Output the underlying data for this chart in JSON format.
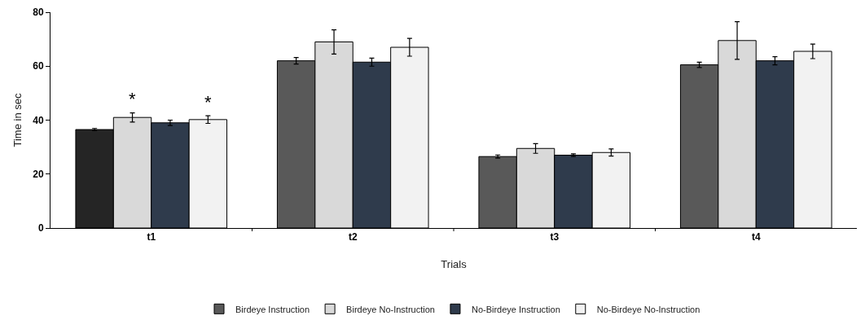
{
  "chart_data": {
    "type": "bar",
    "xlabel": "Trials",
    "ylabel": "Time in sec",
    "categories": [
      "t1",
      "t2",
      "t3",
      "t4"
    ],
    "series": [
      {
        "name": "Birdeye Instruction",
        "color": "#595959",
        "colors": [
          "#252525",
          "#595959",
          "#595959",
          "#595959"
        ],
        "values": [
          36.5,
          62,
          26.5,
          60.5
        ],
        "errors": [
          0.4,
          1.2,
          0.6,
          1
        ]
      },
      {
        "name": "Birdeye No-Instruction",
        "color": "#d9d9d9",
        "values": [
          41,
          69,
          29.5,
          69.5
        ],
        "errors": [
          1.7,
          4.5,
          1.8,
          7
        ]
      },
      {
        "name": "No-Birdeye Instruction",
        "color": "#2f3b4c",
        "values": [
          39,
          61.5,
          27,
          62
        ],
        "errors": [
          1,
          1.5,
          0.5,
          1.5
        ]
      },
      {
        "name": "No-Birdeye No-Instruction",
        "color": "#f2f2f2",
        "values": [
          40.2,
          67,
          28,
          65.5
        ],
        "errors": [
          1.4,
          3.3,
          1.3,
          2.7
        ]
      }
    ],
    "annotations": [
      {
        "text": "*",
        "x": "t1",
        "y": 41
      },
      {
        "text": "*",
        "x": "t1",
        "y": 40.2
      }
    ],
    "ylim": [
      0,
      80
    ],
    "yticks": [
      0,
      20,
      40,
      60,
      80
    ],
    "grid": false,
    "legend": "bottom"
  }
}
